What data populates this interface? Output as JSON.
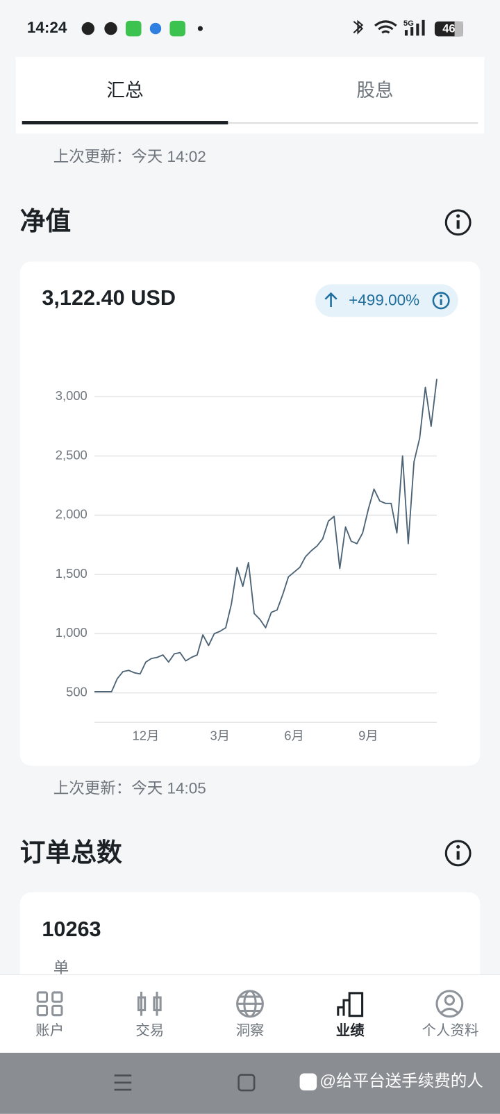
{
  "status_bar": {
    "time": "14:24",
    "network": "5G",
    "battery": "46"
  },
  "tabs": [
    "汇总",
    "股息"
  ],
  "net_value": {
    "updated": "上次更新：今天 14:02",
    "title": "净值",
    "amount": "3,122.40 USD",
    "change": "+499.00%"
  },
  "chart_data": {
    "type": "line",
    "color": "#4b6275",
    "categories": [
      null,
      null,
      null,
      null,
      null,
      null,
      null,
      null,
      null,
      "12月",
      null,
      null,
      null,
      null,
      null,
      null,
      null,
      null,
      null,
      null,
      null,
      null,
      "3月",
      null,
      null,
      null,
      null,
      null,
      null,
      null,
      null,
      null,
      null,
      null,
      null,
      "6月",
      null,
      null,
      null,
      null,
      null,
      null,
      null,
      null,
      null,
      null,
      null,
      null,
      "9月",
      null,
      null,
      null,
      null,
      null,
      null,
      null,
      null,
      null,
      null,
      null,
      null
    ],
    "values": [
      510,
      510,
      510,
      510,
      620,
      680,
      690,
      670,
      660,
      760,
      790,
      800,
      820,
      760,
      830,
      840,
      770,
      800,
      820,
      990,
      900,
      1000,
      1020,
      1050,
      1250,
      1560,
      1400,
      1600,
      1170,
      1120,
      1050,
      1180,
      1200,
      1330,
      1480,
      1520,
      1560,
      1650,
      1700,
      1740,
      1800,
      1950,
      1990,
      1550,
      1900,
      1780,
      1760,
      1850,
      2050,
      2220,
      2120,
      2100,
      2100,
      1850,
      2500,
      1760,
      2450,
      2650,
      3080,
      2750,
      3150
    ],
    "ylim": [
      250,
      3200
    ],
    "yticks": [
      500,
      {
        "value": 1000,
        "label": "1,000"
      },
      {
        "value": 1500,
        "label": "1,500"
      },
      {
        "value": 2000,
        "label": "2,000"
      },
      {
        "value": 2500,
        "label": "2,500"
      },
      {
        "value": 3000,
        "label": "3,000"
      }
    ],
    "grid": true
  },
  "orders": {
    "updated": "上次更新：今天 14:05",
    "title": "订单总数",
    "count": "10263",
    "unit": "单"
  },
  "nav": [
    "账户",
    "交易",
    "洞察",
    "业绩",
    "个人资料"
  ],
  "watermark": "@给平台送手续费的人"
}
